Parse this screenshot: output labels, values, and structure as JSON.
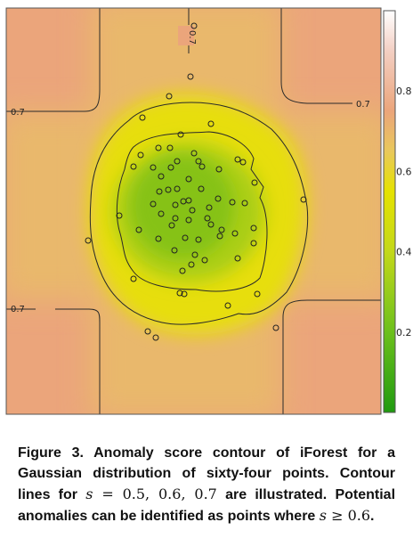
{
  "chart_data": {
    "type": "contour",
    "title": "",
    "xlabel": "",
    "ylabel": "",
    "colorbar": {
      "ticks": [
        "0.8",
        "0.6",
        "0.4",
        "0.2"
      ],
      "tick_values": [
        0.8,
        0.6,
        0.4,
        0.2
      ],
      "range": [
        0,
        1
      ],
      "colors": [
        "#24a314",
        "#e6e600",
        "#eba57b",
        "#ffffff"
      ]
    },
    "contour_levels": [
      0.5,
      0.6,
      0.7
    ],
    "contour_labels": [
      {
        "text": "0.7",
        "position": "top-center, rotated"
      },
      {
        "text": "0.7",
        "position": "top-left"
      },
      {
        "text": "0.7",
        "position": "top-right"
      },
      {
        "text": "0.7",
        "position": "bottom-left"
      }
    ],
    "grid": false,
    "legend": "colorbar right"
  },
  "caption": {
    "label": "Figure 3.",
    "text_1": "Anomaly score contour of iForest for a Gaussian distribution of sixty-four points. Contour lines for",
    "math_var": "s",
    "math_eq": "= 0.5, 0.6, 0.7",
    "text_2": "are illustrated. Potential anomalies can be identified as points where",
    "math_var2": "s",
    "math_ineq": "≥ 0.6",
    "text_3": "."
  }
}
